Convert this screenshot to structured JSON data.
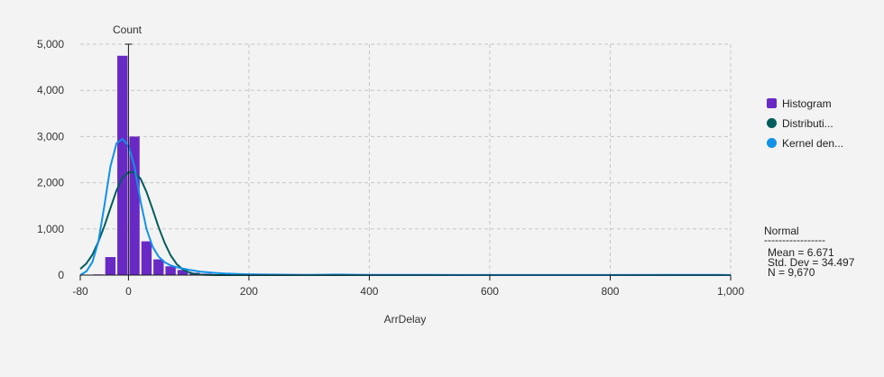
{
  "chart_data": {
    "type": "bar",
    "xlabel": "ArrDelay",
    "ylabel": "Count",
    "xlim": [
      -80,
      1000
    ],
    "ylim": [
      0,
      5000
    ],
    "x_ticks": [
      -80,
      0,
      200,
      400,
      600,
      800,
      1000
    ],
    "x_tick_labels": [
      "-80",
      "0",
      "200",
      "400",
      "600",
      "800",
      "1,000"
    ],
    "y_ticks": [
      0,
      1000,
      2000,
      3000,
      4000,
      5000
    ],
    "y_tick_labels": [
      "0",
      "1,000",
      "2,000",
      "3,000",
      "4,000",
      "5,000"
    ],
    "grid": true,
    "legend_position": "right",
    "bin_width": 20,
    "histogram": {
      "name": "Histogram",
      "bin_starts": [
        -80,
        -60,
        -40,
        -20,
        0,
        20,
        40,
        60,
        80,
        100,
        120,
        140,
        160,
        180,
        200,
        220,
        240
      ],
      "counts": [
        0,
        15,
        390,
        4750,
        3000,
        730,
        340,
        190,
        110,
        50,
        30,
        20,
        12,
        8,
        6,
        4,
        2
      ]
    },
    "series": [
      {
        "name": "Distributi...",
        "color": "#005d5d",
        "x": [
          -80,
          -70,
          -60,
          -50,
          -40,
          -30,
          -20,
          -10,
          0,
          6.7,
          10,
          20,
          30,
          40,
          50,
          60,
          70,
          80,
          90,
          100,
          110,
          120,
          130,
          140,
          150,
          200,
          400,
          600,
          800,
          1000
        ],
        "y": [
          130,
          250,
          440,
          720,
          1060,
          1450,
          1830,
          2110,
          2220,
          2230,
          2220,
          2090,
          1800,
          1430,
          1040,
          700,
          430,
          240,
          125,
          60,
          25,
          10,
          4,
          1,
          0,
          0,
          0,
          0,
          0,
          0
        ]
      },
      {
        "name": "Kernel den...",
        "color": "#1192e8",
        "x": [
          -80,
          -70,
          -60,
          -50,
          -40,
          -30,
          -20,
          -10,
          0,
          10,
          20,
          30,
          40,
          50,
          60,
          70,
          80,
          100,
          120,
          140,
          160,
          180,
          200,
          250,
          300,
          350,
          400,
          500,
          600,
          700,
          800,
          900,
          950,
          980,
          1000
        ],
        "y": [
          0,
          80,
          280,
          720,
          1500,
          2350,
          2850,
          2950,
          2800,
          2350,
          1600,
          1000,
          620,
          400,
          280,
          210,
          170,
          115,
          75,
          50,
          35,
          25,
          18,
          10,
          6,
          12,
          5,
          3,
          2,
          2,
          2,
          3,
          6,
          3,
          0
        ]
      }
    ],
    "legend": [
      {
        "label": "Histogram",
        "color": "#6929c4",
        "shape": "square"
      },
      {
        "label": "Distributi...",
        "color": "#005d5d",
        "shape": "circle"
      },
      {
        "label": "Kernel den...",
        "color": "#1192e8",
        "shape": "circle"
      }
    ],
    "stats": {
      "title": "Normal",
      "divider": "-----------------",
      "mean": "Mean = 6.671",
      "std_dev": "Std. Dev = 34.497",
      "n": "N = 9,670"
    }
  },
  "colors": {
    "background": "#f3f3f3",
    "histogram_fill": "#6929c4",
    "grid": "#c6c6c6",
    "axis": "#161616"
  }
}
